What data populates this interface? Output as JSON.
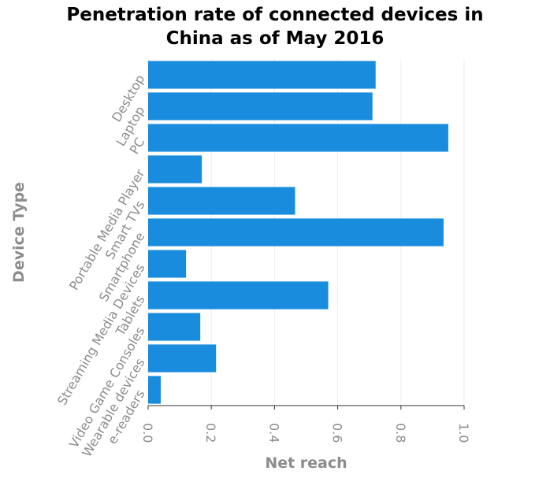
{
  "chart_data": {
    "type": "bar",
    "orientation": "horizontal",
    "title_lines": [
      "Penetration rate of connected devices in",
      "China as of May 2016"
    ],
    "xlabel": "Net reach",
    "ylabel": "Device Type",
    "categories": [
      "Desktop",
      "Laptop",
      "PC",
      "Portable Media Player",
      "Smart TVs",
      "Smartphone",
      "Streaming Media Devices",
      "Tablets",
      "Video Game Consoles",
      "Wearable devices",
      "e-readers"
    ],
    "values": [
      0.72,
      0.71,
      0.95,
      0.17,
      0.465,
      0.935,
      0.12,
      0.57,
      0.165,
      0.215,
      0.04
    ],
    "xlim": [
      0,
      1.0
    ],
    "xticks": [
      0.0,
      0.2,
      0.4,
      0.6,
      0.8,
      1.0
    ],
    "xtick_labels": [
      "0.0",
      "0.2",
      "0.4",
      "0.6",
      "0.8",
      "1.0"
    ],
    "grid": true,
    "bar_color": "#1a8cde"
  }
}
